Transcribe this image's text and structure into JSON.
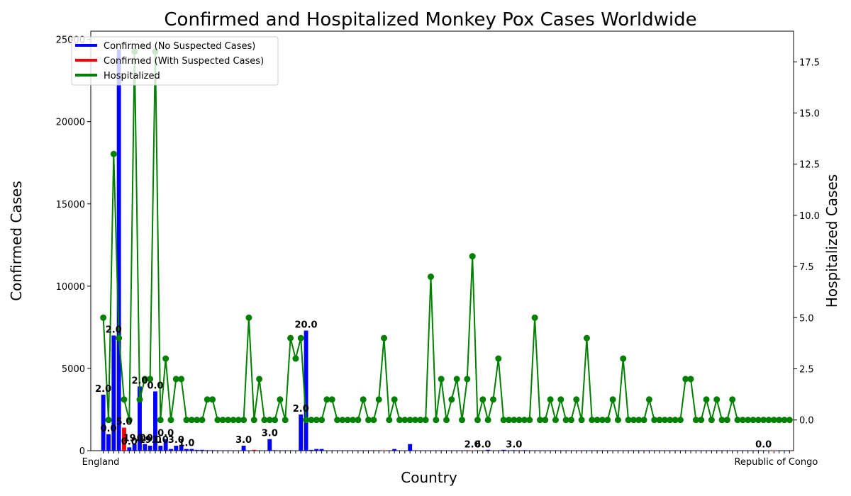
{
  "chart_data": {
    "type": "bar",
    "title": "Confirmed and Hospitalized Monkey Pox Cases Worldwide",
    "xlabel": "Country",
    "ylabel": "Confirmed Cases",
    "y2label": "Hospitalized Cases",
    "ylim": [
      0,
      25500
    ],
    "y2lim": [
      -1.5,
      19
    ],
    "yticks": [
      "0",
      "5000",
      "10000",
      "15000",
      "20000",
      "25000"
    ],
    "y2ticks": [
      "0.0",
      "2.5",
      "5.0",
      "7.5",
      "10.0",
      "12.5",
      "15.0",
      "17.5"
    ],
    "x_first_label": "England",
    "x_last_label": "Republic of Congo",
    "legend_position": "upper left",
    "colors": {
      "confirmed_no_suspected": "#0000ff",
      "confirmed_with_suspected": "#ff0000",
      "hospitalized": "#008000"
    },
    "series": [
      {
        "name": "Confirmed (No Suspected Cases)",
        "kind": "bar",
        "color": "#0000ff"
      },
      {
        "name": "Confirmed (With Suspected Cases)",
        "kind": "bar",
        "color": "#ff0000"
      },
      {
        "name": "Hospitalized",
        "kind": "line",
        "color": "#008000"
      }
    ],
    "confirmed": [
      3400,
      1000,
      7000,
      24400,
      1400,
      200,
      400,
      3900,
      400,
      300,
      3600,
      300,
      700,
      100,
      300,
      300,
      100,
      100,
      50,
      50,
      30,
      30,
      20,
      20,
      20,
      20,
      20,
      300,
      20,
      50,
      20,
      20,
      700,
      30,
      20,
      20,
      20,
      20,
      2200,
      7300,
      50,
      100,
      100,
      20,
      20,
      20,
      20,
      20,
      20,
      20,
      20,
      20,
      20,
      20,
      20,
      20,
      100,
      20,
      20,
      400,
      20,
      20,
      20,
      20,
      20,
      20,
      20,
      20,
      20,
      20,
      20,
      20,
      20,
      20,
      50,
      20,
      20,
      50,
      20,
      30,
      20,
      30,
      20,
      20,
      20,
      20,
      20,
      20,
      20,
      20,
      20,
      20,
      20,
      20,
      20,
      20,
      20,
      20,
      20,
      20,
      20,
      20,
      20,
      20,
      20,
      20,
      20,
      20,
      20,
      20,
      20,
      20,
      20,
      20,
      20,
      20,
      20,
      20,
      20,
      20,
      20,
      20,
      20,
      20,
      20,
      20,
      20,
      20,
      20,
      20,
      20,
      20,
      20
    ],
    "confirmed_suspected_flag": [
      0,
      0,
      0,
      0,
      1,
      0,
      0,
      0,
      0,
      0,
      0,
      0,
      0,
      0,
      0,
      0,
      0,
      0,
      0,
      0,
      0,
      0,
      0,
      0,
      0,
      0,
      0,
      0,
      0,
      1,
      0,
      0,
      0,
      0,
      0,
      0,
      0,
      0,
      0,
      0,
      0,
      0,
      0,
      0,
      0,
      0,
      0,
      0,
      0,
      0,
      0,
      0,
      0,
      0,
      1,
      0,
      0,
      0,
      0,
      0,
      0,
      0,
      0,
      0,
      0,
      0,
      0,
      0,
      0,
      0,
      0,
      1,
      0,
      0,
      0,
      0,
      0,
      0,
      0,
      0,
      0,
      0,
      0,
      0,
      0,
      0,
      0,
      0,
      0,
      0,
      0,
      0,
      0,
      0,
      0,
      0,
      0,
      0,
      0,
      0,
      0,
      0,
      0,
      0,
      0,
      0,
      0,
      0,
      0,
      0,
      0,
      0,
      0,
      0,
      0,
      0,
      0,
      0,
      0,
      0,
      0,
      0,
      0,
      0,
      0,
      0,
      0,
      0,
      1,
      1,
      0,
      0,
      0
    ],
    "hospitalized": [
      5,
      0,
      13,
      4,
      1,
      0,
      18,
      1,
      2,
      2,
      18,
      0,
      3,
      0,
      2,
      2,
      0,
      0,
      0,
      0,
      1,
      1,
      0,
      0,
      0,
      0,
      0,
      0,
      5,
      0,
      2,
      0,
      0,
      0,
      1,
      0,
      4,
      3,
      4,
      0,
      0,
      0,
      0,
      1,
      1,
      0,
      0,
      0,
      0,
      0,
      1,
      0,
      0,
      1,
      4,
      0,
      1,
      0,
      0,
      0,
      0,
      0,
      0,
      7,
      0,
      2,
      0,
      1,
      2,
      0,
      2,
      8,
      0,
      1,
      0,
      1,
      3,
      0,
      0,
      0,
      0,
      0,
      0,
      5,
      0,
      0,
      1,
      0,
      1,
      0,
      0,
      1,
      0,
      4,
      0,
      0,
      0,
      0,
      1,
      0,
      3,
      0,
      0,
      0,
      0,
      1,
      0,
      0,
      0,
      0,
      0,
      0,
      2,
      2,
      0,
      0,
      1,
      0,
      1,
      0,
      0,
      1,
      0,
      0,
      0,
      0,
      0,
      0,
      0,
      0,
      0,
      0,
      0
    ],
    "bar_labels": [
      {
        "index": 0,
        "text": "2.0"
      },
      {
        "index": 1,
        "text": "0.0"
      },
      {
        "index": 2,
        "text": "2.0"
      },
      {
        "index": 4,
        "text": "5.0"
      },
      {
        "index": 5,
        "text": "0.0"
      },
      {
        "index": 6,
        "text": "19.0"
      },
      {
        "index": 7,
        "text": "2.0"
      },
      {
        "index": 8,
        "text": "0.0"
      },
      {
        "index": 9,
        "text": "19.0"
      },
      {
        "index": 10,
        "text": "0.0"
      },
      {
        "index": 11,
        "text": "1.0"
      },
      {
        "index": 12,
        "text": "0.0"
      },
      {
        "index": 14,
        "text": "3.0"
      },
      {
        "index": 16,
        "text": "1.0"
      },
      {
        "index": 27,
        "text": "3.0"
      },
      {
        "index": 32,
        "text": "3.0"
      },
      {
        "index": 38,
        "text": "2.0"
      },
      {
        "index": 39,
        "text": "20.0"
      },
      {
        "index": 71,
        "text": "2.0"
      },
      {
        "index": 73,
        "text": "6.0"
      },
      {
        "index": 79,
        "text": "3.0"
      },
      {
        "index": 127,
        "text": "0.0"
      }
    ]
  }
}
